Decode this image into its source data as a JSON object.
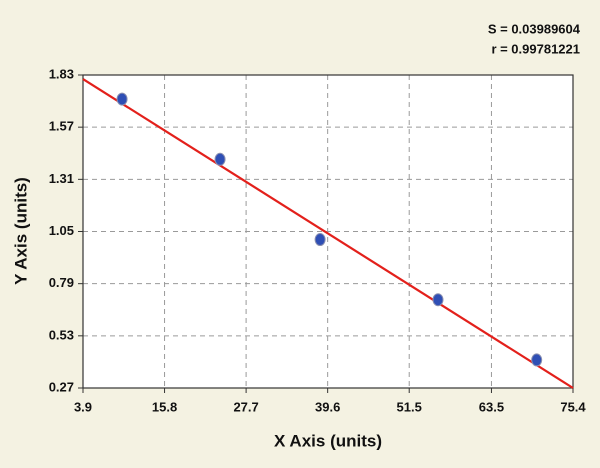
{
  "chart_data": {
    "type": "scatter",
    "annotations": [
      "S = 0.03989604",
      "r = 0.99781221"
    ],
    "x_label": "X Axis (units)",
    "y_label": "Y Axis (units)",
    "series": [
      {
        "color": "#2f4fb5",
        "x": [
          9.6,
          23.9,
          38.5,
          55.7,
          70.1
        ],
        "values": [
          1.71,
          1.41,
          1.01,
          0.71,
          0.41
        ]
      }
    ],
    "fit": {
      "color": "#e3201b",
      "x": [
        3.9,
        75.4
      ],
      "y": [
        1.81,
        0.27
      ]
    },
    "xlim": [
      3.9,
      75.4
    ],
    "xticks": [
      3.9,
      15.8,
      27.7,
      39.6,
      51.5,
      63.5,
      75.4
    ],
    "ylim": [
      0.27,
      1.83
    ],
    "yticks": [
      0.27,
      0.53,
      0.79,
      1.05,
      1.31,
      1.57,
      1.83
    ],
    "grid": true
  }
}
